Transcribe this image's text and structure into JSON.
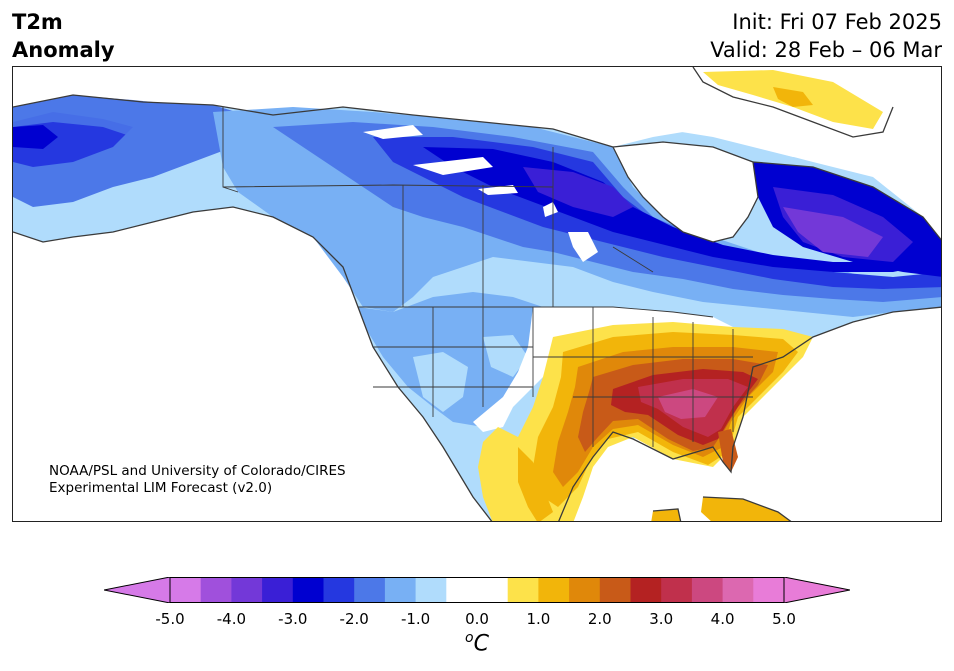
{
  "title": {
    "left_line1": "T2m",
    "left_line2": "Anomaly",
    "right_line1": "Init: Fri 07 Feb 2025",
    "right_line2": "Valid: 28 Feb – 06 Mar"
  },
  "credit": {
    "line1": "NOAA/PSL and University of Colorado/CIRES",
    "line2": "Experimental LIM Forecast (v2.0)"
  },
  "colorbar": {
    "unit_base": "C",
    "unit_super": "o",
    "tick_labels": [
      "-5.0",
      "-4.0",
      "-3.0",
      "-2.0",
      "-1.0",
      "0.0",
      "1.0",
      "2.0",
      "3.0",
      "4.0",
      "5.0"
    ],
    "colors": [
      "#d67ae8",
      "#a050dc",
      "#7338d8",
      "#3a1fd6",
      "#0000d0",
      "#2538e0",
      "#4c78e8",
      "#78b0f4",
      "#b0dcfc",
      "#ffffff",
      "#ffffff",
      "#fde24a",
      "#f2b50a",
      "#e0880a",
      "#c85a18",
      "#b42222",
      "#c0304c",
      "#cc4880",
      "#dc68b0",
      "#e87cd8"
    ],
    "extend_low_color": "#d67ae8",
    "extend_high_color": "#e87cd8"
  },
  "map": {
    "region": "North America",
    "anomaly_colors": {
      "very_cold": "#0000d0",
      "cold": "#2538e0",
      "cool": "#4c78e8",
      "slightly_cool": "#78b0f4",
      "near_normal_cool": "#b0dcfc",
      "neutral": "#ffffff",
      "slightly_warm": "#fde24a",
      "warm": "#f2b50a",
      "warmer": "#e0880a",
      "hot": "#c85a18",
      "very_hot": "#b42222",
      "extreme": "#c0304c",
      "extreme_plus": "#cc4880",
      "max": "#dc68b0"
    }
  }
}
